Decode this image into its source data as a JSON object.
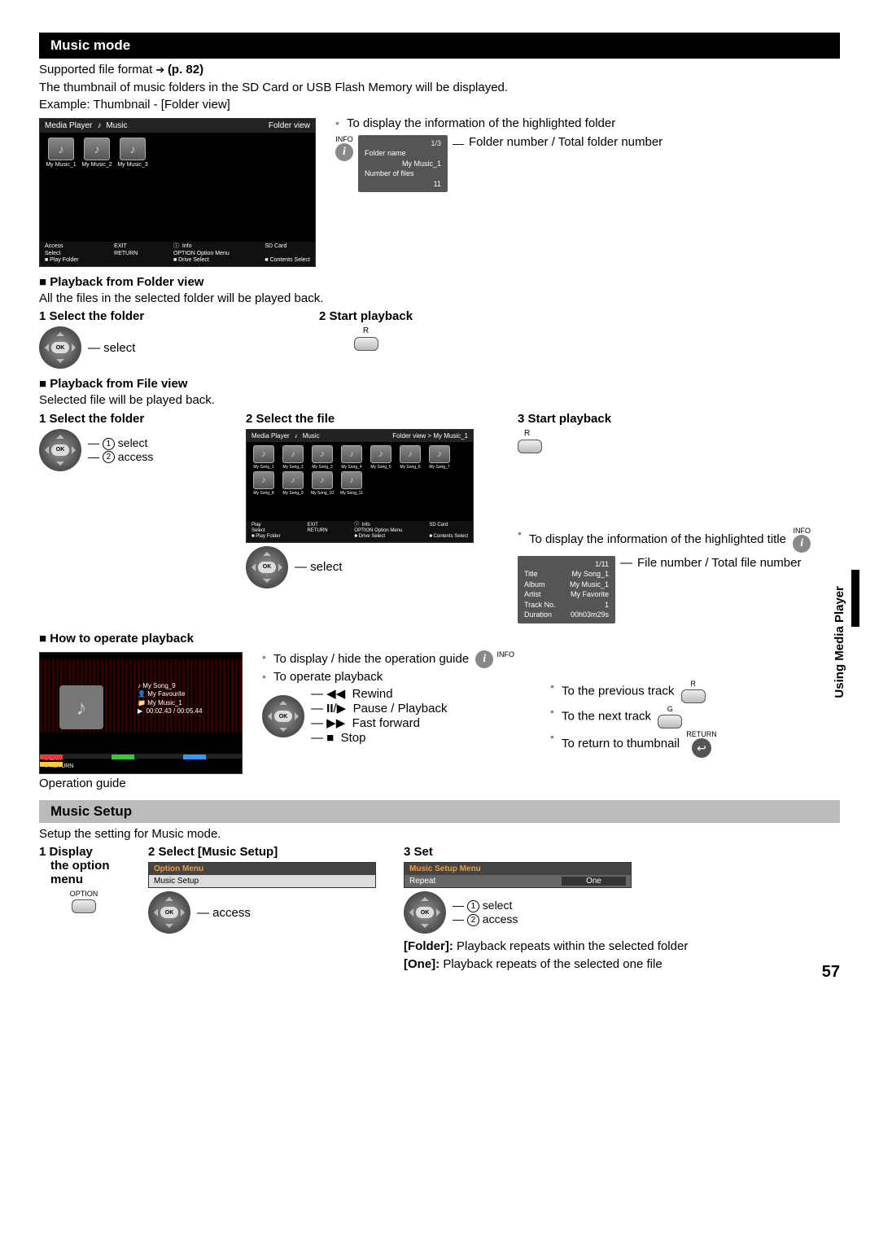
{
  "page_number": "57",
  "side_tab": "Using Media Player",
  "section1": {
    "title": "Music mode",
    "supported_line": "Supported file format ",
    "supported_ref": "(p. 82)",
    "desc_line1": "The thumbnail of music folders in the SD Card or USB Flash Memory will be displayed.",
    "desc_line2": "Example: Thumbnail - [Folder view]"
  },
  "folder_tv": {
    "title_left": "Media Player",
    "title_icon": "♪",
    "title_mid": "Music",
    "title_right": "Folder view",
    "folders": [
      "My Music_1",
      "My Music_2",
      "My Music_3"
    ],
    "footer_left": "Access\nSelect\n■ Play Folder",
    "footer_left2": "EXIT\nRETURN",
    "footer_mid": "ⓘ  Info\nOPTION Option Menu\n■ Drive Select",
    "footer_right": "SD Card\n\n■ Contents Select"
  },
  "info_bullet1": "To display the information of the highlighted folder",
  "info_label": "INFO",
  "folder_info_box": {
    "count": "1/3",
    "l1": "Folder name",
    "l2": "My Music_1",
    "l3": "Number of files",
    "l4": "11"
  },
  "folder_info_caption": "Folder number / Total folder number",
  "playback_folder": {
    "heading": "Playback from Folder view",
    "desc": "All the files in the selected folder will be played back.",
    "step1": "Select the folder",
    "step1_label": "select",
    "step2": "Start playback",
    "step2_btn": "R"
  },
  "playback_file": {
    "heading": "Playback from File view",
    "desc": "Selected file will be played back.",
    "step1": "Select the folder",
    "s1a": "select",
    "s1b": "access",
    "step2": "Select the file",
    "step2_label": "select",
    "step3": "Start playback",
    "step3_btn": "R"
  },
  "file_tv": {
    "title_left": "Media Player",
    "title_icon": "♪",
    "title_mid": "Music",
    "title_right": "Folder view > My Music_1",
    "files_row1": [
      "My Song_1",
      "My Song_2",
      "My Song_3",
      "My Song_4",
      "My Song_5",
      "My Song_6",
      "My Song_7"
    ],
    "files_row2": [
      "My Song_8",
      "My Song_9",
      "My Song_10",
      "My Song_11"
    ],
    "footer_left": "Play\nSelect\n■ Play Folder",
    "footer_left2": "EXIT\nRETURN",
    "footer_mid": "ⓘ  Info\nOPTION Option Menu\n■ Drive Select",
    "footer_right": "SD Card\n\n■ Contents Select"
  },
  "title_info_bullet": "To display the information of the highlighted title",
  "file_info_box": {
    "count": "1/11",
    "rows": [
      [
        "Title",
        "My Song_1"
      ],
      [
        "Album",
        "My Music_1"
      ],
      [
        "Artist",
        "My Favorite"
      ],
      [
        "Track No.",
        "1"
      ],
      [
        "Duration",
        "00h03m29s"
      ]
    ]
  },
  "file_info_caption": "File number / Total file number",
  "operate": {
    "heading": "How to operate playback",
    "guide_caption": "Operation guide",
    "bullet1": "To display / hide the operation guide",
    "bullet2": "To operate playback",
    "rw": "Rewind",
    "pp": "Pause / Playback",
    "ff": "Fast forward",
    "st": "Stop",
    "prev": "To the previous track",
    "next": "To the next track",
    "ret": "To return to thumbnail",
    "btn_r": "R",
    "btn_g": "G",
    "btn_return": "RETURN"
  },
  "play_screen": {
    "t1": "My Song_9",
    "t2": "My Favourite",
    "t3": "My Music_1",
    "t4": "00:02.43 / 00:05.44",
    "ops": "● EXIT\n● RETURN"
  },
  "setup": {
    "title": "Music Setup",
    "desc": "Setup the setting for Music mode.",
    "step1a": "Display",
    "step1b": "the option",
    "step1c": "menu",
    "step1_btn": "OPTION",
    "step2": "Select [Music Setup]",
    "step2_menu_hdr": "Option Menu",
    "step2_menu_item": "Music Setup",
    "step2_label": "access",
    "step3": "Set",
    "step3_menu_hdr": "Music Setup Menu",
    "step3_item_l": "Repeat",
    "step3_item_r": "One",
    "s3a": "select",
    "s3b": "access",
    "folder_line": "[Folder]: Playback repeats within the selected folder",
    "one_line": "[One]: Playback repeats of the selected one file"
  }
}
